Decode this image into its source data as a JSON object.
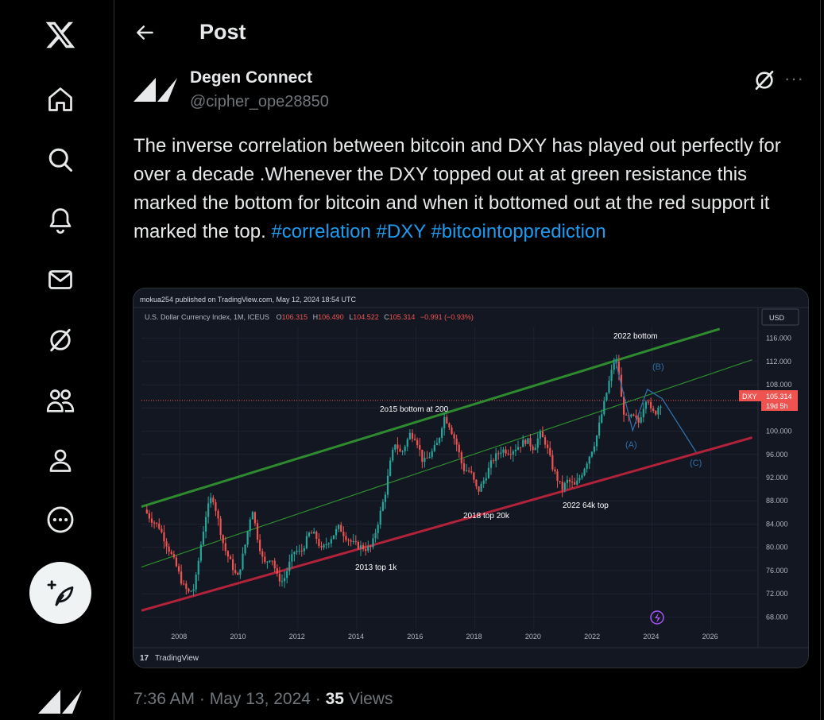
{
  "header": {
    "title": "Post"
  },
  "author": {
    "name": "Degen Connect",
    "handle": "@cipher_ope28850"
  },
  "tweet": {
    "text": "The inverse correlation between bitcoin and DXY has played out perfectly for over a decade .Whenever the DXY topped out at at green resistance this marked the bottom for bitcoin and when it bottomed out at the red support it marked the top.",
    "hashtags": [
      "#correlation",
      "#DXY",
      "#bitcointopprediction"
    ]
  },
  "meta": {
    "time": "7:36 AM · May 13, 2024 · ",
    "views_count": "35",
    "views_label": " Views"
  },
  "chart_data": {
    "type": "line",
    "published": "mokua254 published on TradingView.com, May 12, 2024 18:54 UTC",
    "symbol_line": "U.S. Dollar Currency Index, 1M, ICEUS",
    "ohlc": {
      "O": "106.315",
      "H": "106.490",
      "L": "104.522",
      "C": "105.314",
      "change": "−0.991 (−0.93%)"
    },
    "currency": "USD",
    "ticker": "DXY",
    "last_price": "105.314",
    "countdown": "19d 5h",
    "y_ticks": [
      "116.000",
      "112.000",
      "108.000",
      "104.000",
      "100.000",
      "96.000",
      "92.000",
      "88.000",
      "84.000",
      "80.000",
      "76.000",
      "72.000",
      "68.000"
    ],
    "x_ticks": [
      "2008",
      "2010",
      "2012",
      "2014",
      "2016",
      "2018",
      "2020",
      "2022",
      "2024",
      "2026"
    ],
    "ylim": [
      66,
      118
    ],
    "xlim": [
      2006.7,
      2027.6
    ],
    "series": [
      {
        "values": [
          [
            2006.8,
            86.5
          ],
          [
            2007.0,
            85.0
          ],
          [
            2007.3,
            83.5
          ],
          [
            2007.6,
            80.0
          ],
          [
            2007.9,
            76.5
          ],
          [
            2008.1,
            73.5
          ],
          [
            2008.3,
            72.2
          ],
          [
            2008.5,
            73.0
          ],
          [
            2008.7,
            80.0
          ],
          [
            2008.9,
            86.0
          ],
          [
            2009.1,
            89.0
          ],
          [
            2009.2,
            87.0
          ],
          [
            2009.5,
            80.0
          ],
          [
            2009.8,
            76.5
          ],
          [
            2009.95,
            74.5
          ],
          [
            2010.2,
            80.0
          ],
          [
            2010.45,
            87.0
          ],
          [
            2010.6,
            82.5
          ],
          [
            2010.85,
            77.0
          ],
          [
            2011.1,
            78.5
          ],
          [
            2011.3,
            75.0
          ],
          [
            2011.5,
            74.0
          ],
          [
            2011.7,
            77.0
          ],
          [
            2011.9,
            79.5
          ],
          [
            2012.1,
            79.0
          ],
          [
            2012.4,
            82.5
          ],
          [
            2012.6,
            82.0
          ],
          [
            2012.8,
            79.5
          ],
          [
            2013.1,
            81.5
          ],
          [
            2013.4,
            83.5
          ],
          [
            2013.6,
            82.0
          ],
          [
            2013.9,
            80.5
          ],
          [
            2014.3,
            79.8
          ],
          [
            2014.5,
            80.0
          ],
          [
            2014.7,
            84.0
          ],
          [
            2014.95,
            89.0
          ],
          [
            2015.15,
            95.0
          ],
          [
            2015.3,
            98.0
          ],
          [
            2015.5,
            96.0
          ],
          [
            2015.8,
            99.5
          ],
          [
            2016.0,
            99.0
          ],
          [
            2016.25,
            94.5
          ],
          [
            2016.5,
            96.0
          ],
          [
            2016.75,
            98.0
          ],
          [
            2016.95,
            102.5
          ],
          [
            2017.1,
            101.5
          ],
          [
            2017.4,
            97.5
          ],
          [
            2017.6,
            93.5
          ],
          [
            2017.85,
            93.0
          ],
          [
            2018.1,
            89.5
          ],
          [
            2018.3,
            91.5
          ],
          [
            2018.6,
            95.0
          ],
          [
            2018.9,
            96.8
          ],
          [
            2019.2,
            96.5
          ],
          [
            2019.5,
            97.5
          ],
          [
            2019.75,
            98.5
          ],
          [
            2020.0,
            97.0
          ],
          [
            2020.2,
            99.5
          ],
          [
            2020.4,
            98.0
          ],
          [
            2020.65,
            93.5
          ],
          [
            2020.95,
            90.0
          ],
          [
            2021.15,
            91.5
          ],
          [
            2021.4,
            90.5
          ],
          [
            2021.65,
            93.0
          ],
          [
            2021.9,
            96.0
          ],
          [
            2022.1,
            98.5
          ],
          [
            2022.35,
            104.0
          ],
          [
            2022.55,
            108.5
          ],
          [
            2022.72,
            112.0
          ],
          [
            2022.85,
            111.5
          ],
          [
            2023.0,
            104.0
          ],
          [
            2023.15,
            102.0
          ],
          [
            2023.35,
            102.5
          ],
          [
            2023.55,
            101.5
          ],
          [
            2023.7,
            104.0
          ],
          [
            2023.85,
            106.5
          ],
          [
            2023.95,
            103.5
          ],
          [
            2024.1,
            103.0
          ],
          [
            2024.25,
            104.5
          ],
          [
            2024.37,
            105.3
          ]
        ]
      }
    ],
    "lines": {
      "green_upper": [
        [
          2006.7,
          87.0
        ],
        [
          2024.6,
          115.0
        ],
        [
          2026.3,
          117.6
        ]
      ],
      "green_lower": [
        [
          2006.7,
          76.6
        ],
        [
          2027.4,
          112.3
        ]
      ],
      "red_support": [
        [
          2006.7,
          69.1
        ],
        [
          2027.4,
          98.9
        ]
      ],
      "abc_path": [
        [
          2022.75,
          112.4
        ],
        [
          2023.35,
          100.1
        ],
        [
          2023.85,
          107.2
        ],
        [
          2024.35,
          105.6
        ],
        [
          2025.5,
          96.4
        ]
      ]
    },
    "annotations": [
      "2022 bottom",
      "2o15  bottom at 200",
      "2018  top  20k",
      "2022  64k  top",
      "2013  top  1k",
      "(A)",
      "(B)",
      "(C)"
    ],
    "brand": "TradingView",
    "colors": {
      "green": "#2e8b2e",
      "red": "#b2223a",
      "up": "#26a69a",
      "down": "#ef5350",
      "wave": "#2f6fa8",
      "background": "#131722"
    }
  }
}
